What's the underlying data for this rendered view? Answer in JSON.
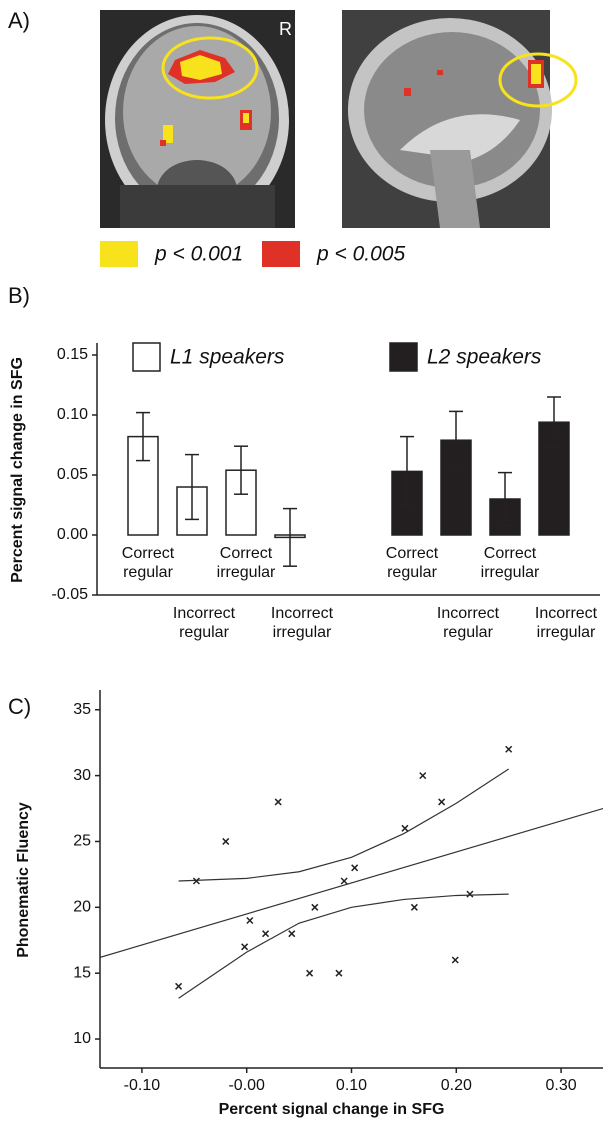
{
  "panel_a": {
    "label": "A)",
    "marker": "R",
    "legend": [
      {
        "text": "p < 0.001",
        "color": "#f7e21b"
      },
      {
        "text": "p < 0.005",
        "color": "#e03127"
      }
    ]
  },
  "chart_data": [
    {
      "type": "bar",
      "label": "B)",
      "ylabel": "Percent signal change in SFG",
      "categories": [
        "Correct regular",
        "Incorrect regular",
        "Correct irregular",
        "Incorrect irregular"
      ],
      "series": [
        {
          "name": "L1 speakers",
          "color": "#ffffff",
          "values": [
            0.082,
            0.04,
            0.054,
            -0.002
          ],
          "errors": [
            0.02,
            0.027,
            0.02,
            0.024
          ]
        },
        {
          "name": "L2 speakers",
          "color": "#231f20",
          "values": [
            0.053,
            0.079,
            0.03,
            0.094
          ],
          "errors": [
            0.029,
            0.024,
            0.022,
            0.021
          ]
        }
      ],
      "ylim": [
        -0.05,
        0.16
      ],
      "yticks": [
        {
          "value": -0.05,
          "label": "-0.05"
        },
        {
          "value": 0,
          "label": "0.00"
        },
        {
          "value": 0.05,
          "label": "0.05"
        },
        {
          "value": 0.1,
          "label": "0.10"
        },
        {
          "value": 0.15,
          "label": "0.15"
        }
      ]
    },
    {
      "type": "scatter",
      "label": "C)",
      "xlabel": "Percent signal change in SFG",
      "ylabel": "Phonematic Fluency",
      "x": [
        -0.065,
        -0.048,
        -0.02,
        -0.002,
        0.003,
        0.018,
        0.03,
        0.043,
        0.06,
        0.065,
        0.088,
        0.093,
        0.103,
        0.151,
        0.16,
        0.168,
        0.186,
        0.199,
        0.213,
        0.25
      ],
      "y": [
        14,
        22,
        25,
        17,
        19,
        18,
        28,
        18,
        15,
        20,
        15,
        22,
        23,
        26,
        20,
        30,
        28,
        16,
        21,
        32
      ],
      "color": "#222222",
      "lines": [
        {
          "x": [
            -0.14,
            0.34
          ],
          "y": [
            16.2,
            27.5
          ]
        },
        {
          "x": [
            -0.065,
            0.0,
            0.05,
            0.1,
            0.15,
            0.2,
            0.25
          ],
          "y": [
            22.0,
            22.2,
            22.7,
            23.8,
            25.6,
            27.9,
            30.5
          ]
        },
        {
          "x": [
            -0.065,
            0.0,
            0.05,
            0.1,
            0.15,
            0.2,
            0.25
          ],
          "y": [
            13.1,
            16.6,
            18.8,
            20.0,
            20.6,
            20.9,
            21.0
          ]
        }
      ],
      "xlim": [
        -0.14,
        0.34
      ],
      "xticks": [
        {
          "value": -0.1,
          "label": "-0.10"
        },
        {
          "value": 0,
          "label": "-0.00"
        },
        {
          "value": 0.1,
          "label": "0.10"
        },
        {
          "value": 0.2,
          "label": "0.20"
        },
        {
          "value": 0.3,
          "label": "0.30"
        }
      ],
      "ylim": [
        7.8,
        36.5
      ],
      "yticks": [
        10,
        15,
        20,
        25,
        30,
        35
      ]
    }
  ]
}
